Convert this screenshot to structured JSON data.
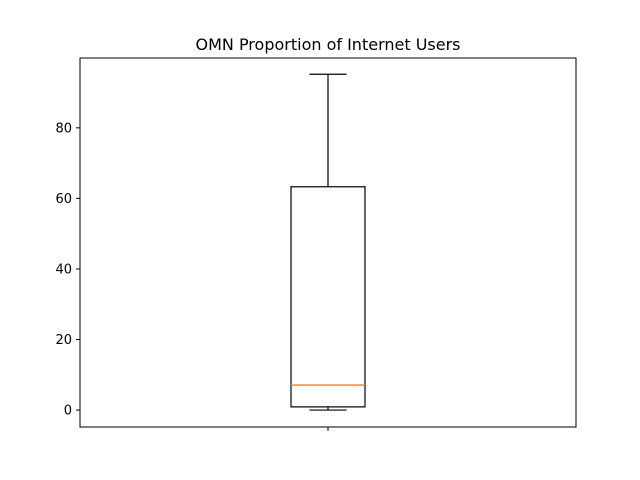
{
  "chart_data": {
    "type": "box",
    "title": "OMN Proportion of Internet Users",
    "xlabel": "",
    "ylabel": "",
    "ylim": [
      -4.8,
      99.8
    ],
    "yticks": [
      0,
      20,
      40,
      60,
      80
    ],
    "grid": false,
    "boxes": [
      {
        "whisker_low": 0,
        "q1": 0.9,
        "median": 7.1,
        "q3": 63.3,
        "whisker_high": 95.2
      }
    ],
    "colors": {
      "box": "#000000",
      "median": "#ff7f0e"
    }
  }
}
